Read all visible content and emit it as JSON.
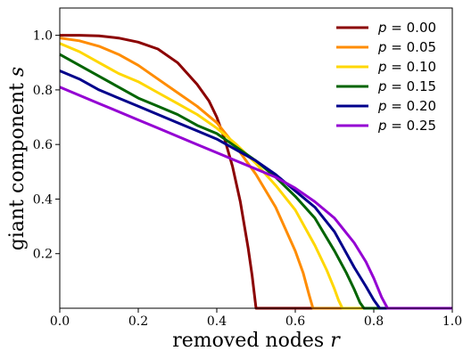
{
  "chart_data": {
    "type": "line",
    "xlabel": {
      "text": "removed nodes ",
      "var": "r"
    },
    "ylabel": {
      "text": "giant component ",
      "var": "s"
    },
    "xlim": [
      0,
      1.0
    ],
    "ylim": [
      0,
      1.1
    ],
    "xticks": [
      0.0,
      0.2,
      0.4,
      0.6,
      0.8,
      1.0
    ],
    "yticks": [
      0.2,
      0.4,
      0.6,
      0.8,
      1.0
    ],
    "legend_position": "top-right",
    "series": [
      {
        "name": "= 0.00",
        "color": "#8b0000",
        "x": [
          0,
          0.05,
          0.1,
          0.15,
          0.2,
          0.25,
          0.3,
          0.35,
          0.38,
          0.4,
          0.42,
          0.44,
          0.46,
          0.48,
          0.49,
          0.495,
          0.5,
          0.55,
          0.6,
          0.7,
          0.8,
          0.9,
          1.0
        ],
        "y": [
          1.0,
          1.0,
          0.998,
          0.99,
          0.975,
          0.95,
          0.9,
          0.82,
          0.76,
          0.7,
          0.62,
          0.52,
          0.39,
          0.22,
          0.12,
          0.06,
          0.0,
          0.0,
          0.0,
          0.0,
          0.0,
          0.0,
          0.0
        ]
      },
      {
        "name": "= 0.05",
        "color": "#ff8c00",
        "x": [
          0,
          0.05,
          0.1,
          0.15,
          0.2,
          0.25,
          0.3,
          0.35,
          0.4,
          0.45,
          0.5,
          0.55,
          0.6,
          0.62,
          0.635,
          0.645,
          0.7,
          0.8,
          0.9,
          1.0
        ],
        "y": [
          0.99,
          0.98,
          0.96,
          0.93,
          0.89,
          0.84,
          0.79,
          0.74,
          0.68,
          0.59,
          0.49,
          0.37,
          0.21,
          0.13,
          0.05,
          0.0,
          0.0,
          0.0,
          0.0,
          0.0
        ]
      },
      {
        "name": "= 0.10",
        "color": "#ffd700",
        "x": [
          0,
          0.05,
          0.1,
          0.15,
          0.2,
          0.25,
          0.3,
          0.35,
          0.4,
          0.45,
          0.5,
          0.55,
          0.6,
          0.65,
          0.68,
          0.7,
          0.71,
          0.72,
          0.8,
          0.9,
          1.0
        ],
        "y": [
          0.97,
          0.94,
          0.9,
          0.86,
          0.83,
          0.79,
          0.75,
          0.71,
          0.66,
          0.6,
          0.53,
          0.45,
          0.36,
          0.23,
          0.14,
          0.07,
          0.03,
          0.0,
          0.0,
          0.0,
          0.0
        ]
      },
      {
        "name": "= 0.15",
        "color": "#006400",
        "x": [
          0,
          0.05,
          0.1,
          0.15,
          0.2,
          0.25,
          0.3,
          0.35,
          0.4,
          0.45,
          0.5,
          0.55,
          0.6,
          0.65,
          0.7,
          0.73,
          0.75,
          0.765,
          0.775,
          0.8,
          0.9,
          1.0
        ],
        "y": [
          0.93,
          0.89,
          0.85,
          0.81,
          0.77,
          0.74,
          0.71,
          0.67,
          0.64,
          0.59,
          0.54,
          0.48,
          0.41,
          0.33,
          0.21,
          0.13,
          0.07,
          0.02,
          0.0,
          0.0,
          0.0,
          0.0
        ]
      },
      {
        "name": "= 0.20",
        "color": "#00008b",
        "x": [
          0,
          0.05,
          0.1,
          0.15,
          0.2,
          0.25,
          0.3,
          0.35,
          0.4,
          0.45,
          0.5,
          0.55,
          0.6,
          0.65,
          0.7,
          0.75,
          0.78,
          0.8,
          0.81,
          0.815,
          0.9,
          1.0
        ],
        "y": [
          0.87,
          0.84,
          0.8,
          0.77,
          0.74,
          0.71,
          0.68,
          0.65,
          0.62,
          0.58,
          0.54,
          0.49,
          0.43,
          0.37,
          0.28,
          0.15,
          0.08,
          0.03,
          0.01,
          0.0,
          0.0,
          0.0
        ]
      },
      {
        "name": "= 0.25",
        "color": "#9400d3",
        "x": [
          0,
          0.05,
          0.1,
          0.15,
          0.2,
          0.25,
          0.3,
          0.35,
          0.4,
          0.45,
          0.5,
          0.55,
          0.6,
          0.65,
          0.7,
          0.75,
          0.78,
          0.8,
          0.82,
          0.835,
          0.9,
          1.0
        ],
        "y": [
          0.81,
          0.78,
          0.75,
          0.72,
          0.69,
          0.66,
          0.63,
          0.6,
          0.57,
          0.54,
          0.51,
          0.48,
          0.44,
          0.39,
          0.33,
          0.24,
          0.17,
          0.11,
          0.04,
          0.0,
          0.0,
          0.0
        ]
      }
    ]
  }
}
